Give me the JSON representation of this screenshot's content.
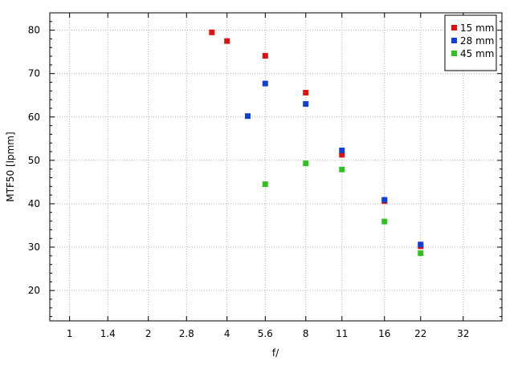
{
  "chart_data": {
    "type": "scatter",
    "title": "",
    "xlabel": "f/",
    "ylabel": "MTF50 [lpmm]",
    "x_scale": "log2",
    "x_ticks": [
      "1",
      "1.4",
      "2",
      "2.8",
      "4",
      "5.6",
      "8",
      "11",
      "16",
      "22",
      "32"
    ],
    "x_tick_values": [
      1,
      1.4,
      2,
      2.8,
      4,
      5.6,
      8,
      11,
      16,
      22,
      32
    ],
    "xlim": [
      0.84,
      45
    ],
    "ylim": [
      13,
      84
    ],
    "y_ticks": [
      20,
      30,
      40,
      50,
      60,
      70,
      80
    ],
    "y_minor_step": 2,
    "grid": true,
    "legend_position": "top-right",
    "series": [
      {
        "name": "15 mm",
        "color": "#e01010",
        "points": [
          {
            "x": 3.5,
            "y": 79.5
          },
          {
            "x": 4.0,
            "y": 77.5
          },
          {
            "x": 5.6,
            "y": 74.1
          },
          {
            "x": 8.0,
            "y": 65.6
          },
          {
            "x": 11.0,
            "y": 51.3
          },
          {
            "x": 16.0,
            "y": 40.6
          },
          {
            "x": 22.0,
            "y": 30.2
          }
        ]
      },
      {
        "name": "28 mm",
        "color": "#1040d8",
        "points": [
          {
            "x": 4.8,
            "y": 60.2
          },
          {
            "x": 5.6,
            "y": 67.7
          },
          {
            "x": 8.0,
            "y": 63.0
          },
          {
            "x": 11.0,
            "y": 52.3
          },
          {
            "x": 16.0,
            "y": 40.9
          },
          {
            "x": 22.0,
            "y": 30.6
          }
        ]
      },
      {
        "name": "45 mm",
        "color": "#30c020",
        "points": [
          {
            "x": 5.6,
            "y": 44.5
          },
          {
            "x": 8.0,
            "y": 49.3
          },
          {
            "x": 11.0,
            "y": 47.9
          },
          {
            "x": 16.0,
            "y": 35.9
          },
          {
            "x": 22.0,
            "y": 28.6
          }
        ]
      }
    ]
  }
}
